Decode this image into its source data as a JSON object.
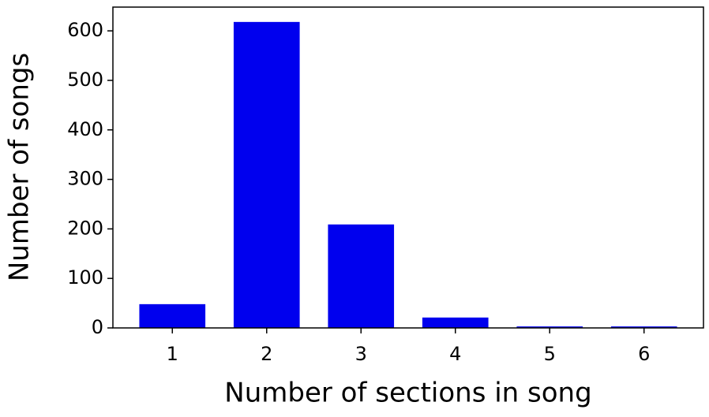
{
  "chart_data": {
    "type": "bar",
    "x_label": "Number of sections in song",
    "y_label": "Number of songs",
    "x": [
      1,
      2,
      3,
      4,
      5,
      6
    ],
    "values": [
      48,
      618,
      209,
      21,
      3,
      3
    ],
    "color": "#0000ee",
    "xlim": [
      0.37,
      6.63
    ],
    "ylim": [
      0,
      648
    ],
    "xticks": [
      1,
      2,
      3,
      4,
      5,
      6
    ],
    "yticks": [
      0,
      100,
      200,
      300,
      400,
      500,
      600
    ]
  }
}
